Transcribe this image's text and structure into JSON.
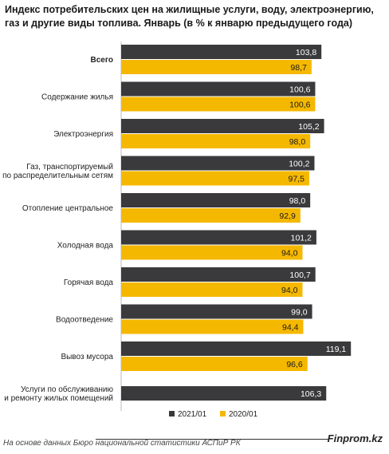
{
  "title": "Индекс потребительских цен на жилищные услуги, воду, электроэнергию, газ и другие виды топлива. Январь (в % к январю предыдущего года)",
  "source": "На основе данных Бюро национальной статистики АСПиР РК",
  "brand": "Finprom.kz",
  "colors": {
    "series_2021": "#3a3a3c",
    "series_2020": "#f5b800"
  },
  "chart_data": {
    "type": "bar",
    "orientation": "horizontal",
    "title": "Индекс потребительских цен на жилищные услуги, воду, электроэнергию, газ и другие виды топлива. Январь (в % к январю предыдущего года)",
    "categories": [
      [
        "Всего"
      ],
      [
        "Содержание жилья"
      ],
      [
        "Электроэнергия"
      ],
      [
        "Газ, транспортируемый",
        "по распределительным сетям"
      ],
      [
        "Отопление центральное"
      ],
      [
        "Холодная вода"
      ],
      [
        "Горячая вода"
      ],
      [
        "Водоотведение"
      ],
      [
        "Вывоз мусора"
      ],
      [
        "Услуги по обслуживанию",
        "и ремонту жилых помещений"
      ]
    ],
    "bold_categories": [
      0
    ],
    "series": [
      {
        "name": "2021/01",
        "color": "#3a3a3c",
        "values": [
          103.8,
          100.6,
          105.2,
          100.2,
          98.0,
          101.2,
          100.7,
          99.0,
          119.1,
          106.3
        ],
        "labels": [
          "103,8",
          "100,6",
          "105,2",
          "100,2",
          "98,0",
          "101,2",
          "100,7",
          "99,0",
          "119,1",
          "106,3"
        ]
      },
      {
        "name": "2020/01",
        "color": "#f5b800",
        "values": [
          98.7,
          100.6,
          98.0,
          97.5,
          92.9,
          94.0,
          94.0,
          94.4,
          96.6,
          null
        ],
        "labels": [
          "98,7",
          "100,6",
          "98,0",
          "97,5",
          "92,9",
          "94,0",
          "94,0",
          "94,4",
          "96,6",
          null
        ]
      }
    ],
    "legend_position": "bottom",
    "grid": false
  }
}
